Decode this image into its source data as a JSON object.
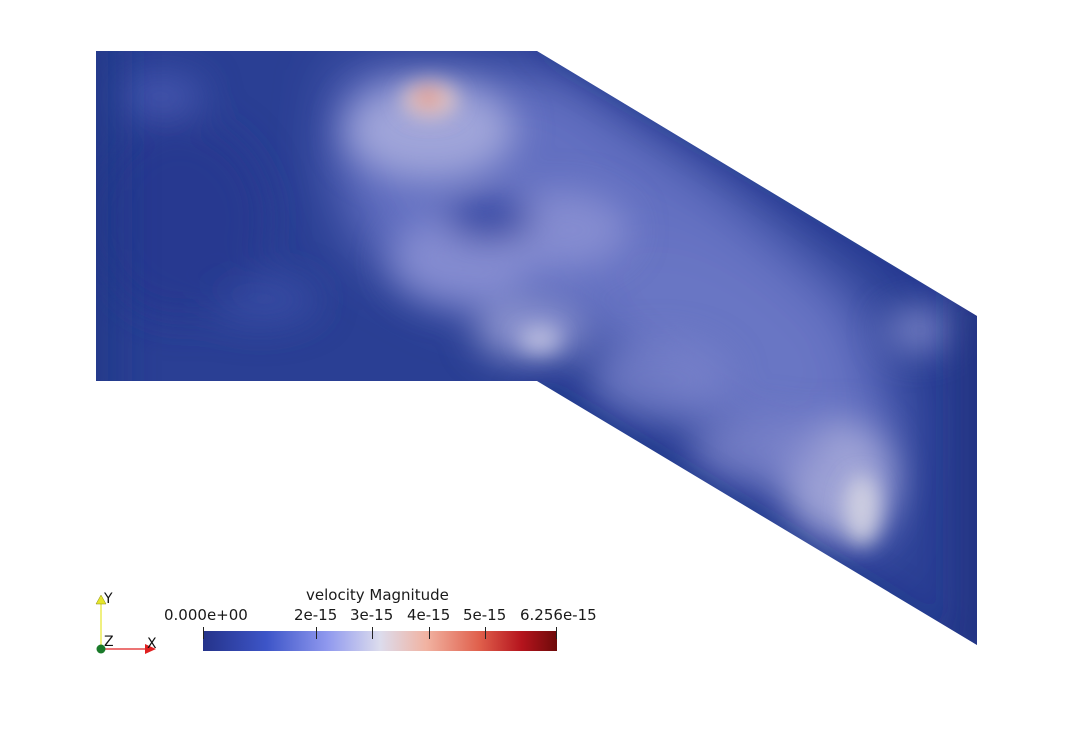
{
  "scalar_bar": {
    "title": "velocity Magnitude",
    "labels": {
      "min": "0.000e+00",
      "t2": "2e-15",
      "t3": "3e-15",
      "t4": "4e-15",
      "t5": "5e-15",
      "max": "6.256e-15"
    },
    "range": [
      0,
      6.256e-15
    ],
    "colormap": "Cool to Warm (Extended)",
    "colors": {
      "low": "#1f2f7a",
      "mid_low": "#5d6ed8",
      "mid": "#dcdcec",
      "mid_high": "#e9705a",
      "high": "#7a0a0a"
    }
  },
  "orientation_axes": {
    "x_label": "X",
    "y_label": "Y",
    "z_label": "Z",
    "x_color": "#e02020",
    "y_color": "#e0e020",
    "z_color": "#1a7a2a"
  }
}
